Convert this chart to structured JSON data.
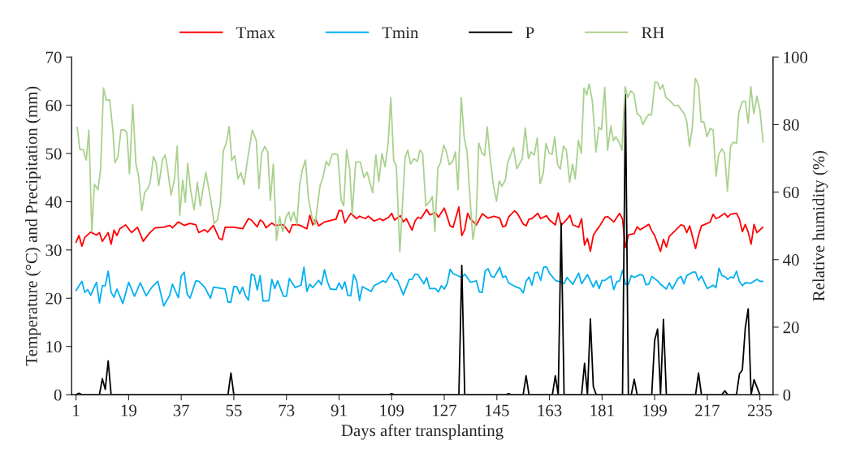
{
  "chart_data": {
    "type": "line",
    "xlabel": "Days after transplanting",
    "ylabel": "Temperature (°C) and Precipitation (mm)",
    "y2label": "Relative humidity (%)",
    "xlim": [
      -0.5,
      239.5
    ],
    "xticks": [
      1,
      19,
      37,
      55,
      73,
      91,
      109,
      127,
      145,
      163,
      181,
      199,
      217,
      235
    ],
    "ylim": [
      0,
      70
    ],
    "yticks": [
      0,
      10,
      20,
      30,
      40,
      50,
      60,
      70
    ],
    "y2lim": [
      0,
      100
    ],
    "y2ticks": [
      0,
      20,
      40,
      60,
      80,
      100
    ],
    "grid": false,
    "legend": "top",
    "marker": "none",
    "line_style": "solid",
    "series": [
      {
        "name": "Tmax",
        "color": "#ff0000",
        "x": [
          1,
          2,
          3,
          4,
          6,
          8,
          9,
          10,
          12,
          13,
          14,
          15,
          16,
          18,
          20,
          22,
          24,
          26,
          28,
          31,
          33,
          34,
          36,
          38,
          40,
          42,
          43,
          45,
          46,
          48,
          50,
          51,
          52,
          55,
          58,
          60,
          61,
          63,
          64,
          65,
          66,
          68,
          69,
          72,
          74,
          75,
          77,
          78,
          80,
          81,
          82,
          83,
          84,
          86,
          90,
          91,
          92,
          93,
          95,
          97,
          98,
          100,
          101,
          103,
          105,
          106,
          108,
          109,
          110,
          112,
          113,
          114,
          116,
          117,
          118,
          119,
          121,
          122,
          124,
          125,
          127,
          128,
          129,
          130,
          132,
          133,
          134,
          135,
          136,
          138,
          140,
          142,
          144,
          146,
          147,
          148,
          149,
          151,
          152,
          154,
          155,
          156,
          157,
          159,
          160,
          162,
          163,
          165,
          166,
          167,
          169,
          170,
          171,
          173,
          174,
          175,
          176,
          177,
          178,
          179,
          180,
          182,
          183,
          185,
          187,
          188,
          189,
          190,
          192,
          193,
          194,
          197,
          198,
          199,
          201,
          202,
          203,
          204,
          206,
          208,
          209,
          210,
          211,
          213,
          214,
          215,
          217,
          218,
          219,
          220,
          221,
          223,
          224,
          225,
          227,
          228,
          229,
          230,
          231,
          232,
          233,
          234,
          236
        ],
        "values": [
          31.6,
          33.0,
          30.8,
          32.6,
          33.7,
          33.1,
          33.6,
          31.8,
          33.6,
          31.2,
          34.1,
          33.0,
          34.4,
          35.2,
          33.6,
          34.7,
          31.8,
          33.4,
          34.6,
          34.7,
          35.1,
          34.6,
          35.8,
          35.1,
          35.5,
          35.2,
          33.6,
          34.2,
          33.7,
          35.1,
          32.4,
          32.1,
          34.7,
          34.7,
          34.4,
          36.5,
          36.2,
          34.8,
          36.2,
          35.8,
          34.6,
          35.6,
          35.1,
          35.2,
          33.6,
          35.2,
          35.2,
          35.0,
          34.4,
          37.2,
          35.2,
          36.4,
          35.0,
          35.8,
          36.4,
          38.2,
          38.1,
          35.6,
          37.6,
          36.5,
          37.0,
          36.5,
          37.0,
          36.0,
          36.5,
          36.1,
          36.8,
          37.6,
          36.2,
          37.1,
          35.8,
          36.5,
          34.1,
          36.0,
          36.8,
          36.5,
          38.4,
          37.3,
          37.7,
          36.8,
          38.7,
          36.9,
          35.0,
          34.7,
          38.9,
          33.0,
          34.2,
          37.6,
          36.4,
          35.2,
          37.5,
          36.6,
          37.0,
          36.6,
          34.8,
          35.0,
          36.8,
          38.1,
          37.6,
          35.4,
          35.0,
          36.4,
          36.5,
          37.6,
          36.5,
          37.1,
          36.2,
          35.2,
          37.7,
          35.1,
          36.4,
          37.2,
          35.2,
          34.7,
          36.5,
          31.0,
          32.4,
          29.7,
          33.0,
          34.0,
          34.8,
          36.8,
          36.9,
          35.8,
          37.6,
          36.4,
          30.5,
          33.1,
          33.4,
          34.8,
          34.2,
          35.3,
          34.0,
          33.0,
          29.7,
          32.2,
          30.6,
          32.8,
          34.0,
          35.2,
          35.0,
          33.6,
          35.0,
          30.3,
          33.0,
          35.0,
          35.5,
          35.8,
          37.4,
          36.5,
          36.8,
          37.6,
          36.8,
          37.4,
          37.6,
          36.4,
          33.8,
          35.3,
          33.7,
          31.2,
          35.3,
          33.6,
          34.7
        ]
      },
      {
        "name": "Tmin",
        "color": "#00b0f0",
        "x": [
          1,
          3,
          4,
          5,
          6,
          8,
          9,
          10,
          11,
          12,
          13,
          14,
          15,
          17,
          19,
          21,
          23,
          25,
          27,
          29,
          31,
          33,
          34,
          36,
          37,
          38,
          39,
          40,
          42,
          43,
          45,
          47,
          48,
          52,
          53,
          54,
          55,
          56,
          57,
          58,
          59,
          60,
          61,
          62,
          63,
          64,
          65,
          67,
          68,
          69,
          70,
          72,
          73,
          74,
          76,
          78,
          79,
          80,
          81,
          82,
          84,
          85,
          86,
          87,
          88,
          90,
          91,
          92,
          93,
          94,
          95,
          96,
          97,
          98,
          99,
          102,
          103,
          104,
          106,
          107,
          109,
          110,
          111,
          113,
          115,
          116,
          117,
          118,
          120,
          121,
          122,
          124,
          125,
          126,
          127,
          128,
          129,
          130,
          133,
          134,
          136,
          138,
          139,
          140,
          141,
          142,
          143,
          144,
          146,
          147,
          148,
          149,
          151,
          153,
          154,
          155,
          156,
          157,
          158,
          159,
          160,
          161,
          162,
          163,
          165,
          167,
          168,
          169,
          171,
          173,
          174,
          176,
          178,
          179,
          180,
          181,
          182,
          184,
          185,
          186,
          187,
          188,
          189,
          190,
          191,
          192,
          194,
          195,
          196,
          197,
          198,
          200,
          201,
          203,
          204,
          205,
          207,
          208,
          209,
          210,
          212,
          213,
          214,
          215,
          217,
          219,
          220,
          221,
          222,
          223,
          224,
          225,
          226,
          227,
          228,
          229,
          230,
          232,
          234,
          235,
          236
        ],
        "values": [
          21.6,
          23.5,
          21.2,
          21.8,
          20.6,
          23.3,
          19.0,
          22.6,
          22.6,
          25.6,
          21.2,
          20.2,
          21.9,
          18.9,
          23.3,
          20.4,
          23.2,
          20.5,
          22.3,
          23.5,
          18.4,
          20.5,
          22.9,
          20.1,
          24.6,
          25.4,
          20.9,
          20.0,
          23.6,
          23.5,
          22.3,
          20.0,
          22.3,
          21.9,
          19.2,
          19.2,
          22.4,
          22.4,
          20.9,
          22.3,
          20.5,
          19.6,
          25.0,
          24.7,
          21.7,
          24.7,
          19.4,
          19.5,
          23.9,
          22.0,
          23.6,
          20.4,
          20.4,
          24.1,
          22.2,
          22.7,
          26.4,
          21.4,
          22.9,
          22.2,
          23.7,
          22.8,
          25.9,
          23.5,
          21.9,
          21.8,
          23.2,
          21.9,
          23.4,
          20.6,
          20.5,
          24.9,
          23.6,
          19.5,
          22.4,
          21.4,
          22.6,
          22.9,
          23.6,
          23.3,
          25.3,
          23.9,
          23.7,
          20.7,
          23.9,
          23.9,
          25.0,
          24.9,
          23.0,
          24.3,
          22.0,
          22.0,
          21.3,
          22.6,
          21.9,
          23.0,
          26.0,
          25.1,
          24.3,
          25.0,
          23.3,
          23.6,
          21.3,
          21.2,
          25.7,
          26.1,
          24.6,
          24.3,
          26.4,
          24.3,
          24.6,
          23.2,
          22.5,
          22.0,
          21.1,
          23.5,
          24.4,
          22.7,
          25.2,
          25.4,
          23.7,
          26.4,
          26.5,
          25.2,
          23.7,
          23.3,
          23.0,
          24.3,
          22.9,
          25.2,
          23.0,
          24.9,
          22.3,
          23.6,
          22.0,
          23.7,
          23.7,
          24.6,
          21.8,
          23.4,
          23.6,
          25.8,
          22.9,
          22.9,
          24.7,
          24.3,
          24.9,
          24.7,
          22.8,
          22.9,
          24.5,
          23.6,
          22.9,
          21.9,
          23.2,
          21.9,
          24.1,
          24.5,
          23.0,
          24.7,
          25.4,
          25.4,
          23.7,
          24.6,
          22.0,
          22.7,
          22.2,
          26.2,
          24.7,
          24.5,
          23.9,
          24.4,
          24.2,
          25.6,
          23.4,
          22.6,
          23.2,
          23.1,
          23.9,
          23.5,
          23.5
        ]
      },
      {
        "name": "P",
        "color": "#000000",
        "x": [
          1,
          2,
          3,
          9,
          10,
          11,
          12,
          13,
          53,
          54,
          55,
          108,
          109,
          110,
          132,
          133,
          134,
          148,
          149,
          150,
          154,
          155,
          156,
          164,
          165,
          166,
          167,
          168,
          174,
          175,
          176,
          177,
          178,
          179,
          188,
          189,
          190,
          191,
          192,
          193,
          198,
          199,
          200,
          201,
          202,
          203,
          213,
          214,
          215,
          222,
          223,
          224,
          227,
          228,
          229,
          230,
          231,
          232,
          233,
          235
        ],
        "values": [
          0,
          0.3,
          0,
          0,
          3.3,
          1.1,
          7.0,
          0,
          0,
          4.5,
          0,
          0,
          0.2,
          0,
          0,
          26.8,
          0,
          0,
          0.2,
          0,
          0,
          3.9,
          0,
          0,
          3.9,
          0,
          35.5,
          0,
          0,
          6.5,
          0,
          15.7,
          1.7,
          0,
          0,
          62.2,
          0,
          0,
          3.2,
          0,
          0,
          11.3,
          13.6,
          0,
          15.6,
          0,
          0,
          4.5,
          0,
          0,
          0.8,
          0,
          0,
          4.3,
          5.1,
          13.8,
          17.8,
          0,
          3.1,
          0
        ]
      },
      {
        "name": "RH",
        "color": "#a9d18e",
        "axis": "y2",
        "x": [
          1.4,
          2.3,
          3.4,
          4.5,
          5.4,
          6.4,
          7.3,
          8.5,
          9.4,
          10.4,
          11.3,
          12.5,
          13.6,
          14.3,
          15.3,
          16.4,
          17.5,
          18.4,
          19.3,
          20.4,
          21.5,
          22.4,
          23.5,
          24.5,
          25.6,
          26.4,
          27.5,
          28.4,
          29.3,
          30.6,
          31.5,
          32.3,
          33.5,
          34.7,
          35.6,
          36.5,
          37.5,
          38.4,
          39.2,
          40.2,
          41.4,
          42.5,
          43.5,
          45.4,
          46.9,
          48.3,
          49.4,
          50.4,
          51.4,
          52.5,
          53.4,
          54.3,
          55.3,
          56.4,
          57.4,
          58.5,
          59.6,
          61.3,
          62.7,
          63.6,
          64.5,
          65.6,
          66.6,
          67.5,
          68.5,
          69.6,
          70.7,
          71.7,
          72.9,
          73.8,
          74.5,
          75.5,
          76.6,
          77.5,
          78.4,
          79.5,
          80.5,
          81.7,
          82.8,
          83.5,
          84.5,
          85.5,
          86.6,
          87.5,
          88.6,
          89.5,
          90.6,
          91.7,
          92.6,
          93.6,
          94.6,
          95.5,
          96.7,
          98.3,
          99.5,
          100.6,
          102.5,
          103.6,
          104.6,
          105.7,
          106.7,
          107.8,
          108.7,
          109.7,
          110.6,
          111.8,
          113.6,
          114.5,
          115.5,
          116.6,
          117.8,
          118.7,
          119.6,
          120.7,
          122.1,
          122.9,
          123.8,
          124.8,
          125.7,
          126.8,
          127.7,
          128.7,
          129.9,
          130.8,
          131.7,
          132.8,
          133.8,
          134.8,
          135.9,
          136.8,
          137.9,
          138.8,
          139.9,
          140.8,
          141.7,
          142.8,
          143.9,
          144.9,
          145.8,
          146.7,
          147.9,
          148.7,
          150.7,
          151.8,
          153.7,
          154.7,
          155.8,
          156.7,
          157.8,
          158.8,
          159.8,
          160.9,
          161.8,
          162.9,
          163.9,
          164.8,
          165.8,
          166.7,
          167.8,
          168.8,
          169.9,
          170.9,
          171.8,
          172.9,
          173.9,
          174.8,
          175.7,
          176.6,
          177.7,
          178.9,
          179.9,
          180.8,
          181.9,
          182.9,
          184.0,
          184.9,
          185.7,
          186.8,
          187.8,
          188.9,
          189.8,
          190.8,
          191.9,
          193.0,
          194.1,
          195.0,
          196.1,
          197.0,
          197.9,
          199.1,
          200.0,
          200.9,
          201.8,
          202.8,
          204.0,
          205.8,
          207.0,
          208.1,
          209.1,
          210.0,
          210.9,
          211.8,
          212.9,
          214.0,
          214.9,
          215.8,
          216.9,
          218.0,
          219.0,
          220.0,
          220.9,
          222.0,
          222.9,
          223.9,
          225.0,
          225.9,
          227.0,
          227.8,
          229.0,
          230.0,
          231.0,
          231.9,
          232.9,
          234.0,
          235.0,
          236.1
        ],
        "values": [
          79.2,
          72.6,
          72.6,
          69.5,
          78.4,
          48.3,
          62.3,
          60.7,
          66.7,
          90.8,
          87.2,
          87.4,
          78.4,
          68.7,
          70.3,
          78.4,
          78.5,
          77.6,
          65.4,
          86.0,
          68.3,
          64.7,
          54.5,
          59.9,
          61.1,
          63.1,
          70.5,
          68.7,
          61.9,
          69.7,
          71.0,
          67.1,
          59.1,
          63.9,
          73.6,
          53.1,
          63.5,
          56.9,
          68.5,
          60.7,
          54.7,
          62.9,
          55.9,
          65.9,
          58.7,
          50.7,
          51.8,
          56.7,
          72.2,
          74.8,
          79.4,
          69.4,
          70.8,
          63.9,
          65.7,
          62.3,
          69.1,
          78.4,
          75.2,
          61.1,
          71.5,
          73.5,
          71.9,
          57.5,
          68.3,
          45.7,
          52.7,
          48.3,
          52.7,
          54.1,
          51.5,
          54.1,
          50.5,
          61.9,
          66.5,
          69.5,
          58.3,
          52.7,
          50.5,
          55.1,
          61.9,
          64.3,
          69.1,
          67.9,
          71.1,
          71.3,
          71.0,
          57.7,
          55.9,
          72.5,
          67.1,
          53.5,
          68.9,
          68.9,
          64.3,
          65.9,
          59.8,
          71.0,
          63.1,
          71.4,
          67.5,
          74.4,
          88.0,
          69.3,
          67.7,
          42.3,
          70.3,
          72.4,
          68.3,
          69.9,
          69.1,
          72.4,
          71.5,
          55.9,
          57.3,
          58.7,
          48.3,
          67.1,
          68.7,
          73.9,
          72.1,
          68.1,
          69.1,
          71.9,
          60.7,
          88.0,
          76.4,
          71.9,
          57.1,
          45.9,
          51.9,
          74.5,
          71.5,
          70.8,
          79.3,
          69.1,
          61.5,
          57.3,
          63.3,
          61.7,
          63.5,
          68.7,
          73.3,
          66.9,
          69.9,
          79.0,
          69.9,
          71.9,
          71.0,
          76.0,
          62.5,
          65.7,
          74.4,
          71.5,
          71.2,
          76.4,
          68.1,
          66.8,
          73.6,
          72.4,
          62.9,
          68.3,
          63.9,
          75.3,
          71.5,
          90.8,
          88.8,
          92.0,
          86.8,
          71.9,
          79.2,
          78.5,
          91.0,
          72.4,
          79.6,
          75.2,
          76.4,
          74.8,
          72.4,
          91.2,
          88.0,
          90.0,
          89.2,
          83.2,
          82.4,
          80.0,
          82.0,
          83.0,
          82.8,
          92.6,
          92.4,
          90.4,
          91.8,
          88.1,
          87.2,
          85.6,
          85.7,
          84.4,
          83.2,
          80.8,
          73.6,
          78.4,
          93.7,
          91.6,
          80.8,
          80.9,
          76.4,
          78.8,
          78.4,
          64.7,
          71.1,
          72.8,
          71.5,
          60.3,
          73.6,
          74.8,
          74.4,
          83.6,
          86.8,
          86.9,
          80.4,
          91.2,
          83.2,
          88.4,
          84.4,
          74.8
        ]
      }
    ]
  }
}
